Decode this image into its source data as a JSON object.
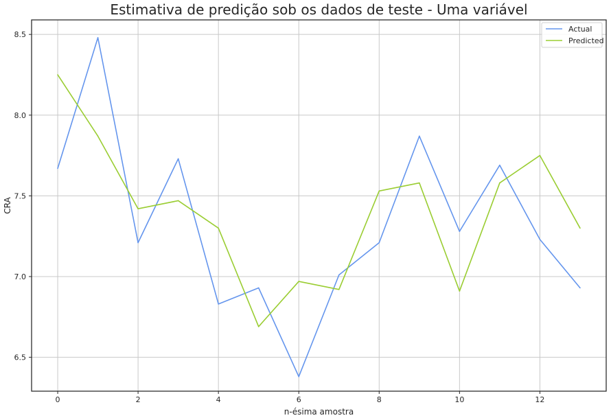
{
  "chart_data": {
    "type": "line",
    "title": "Estimativa de predição sob os dados de teste - Uma variável",
    "xlabel": "n-ésima amostra",
    "ylabel": "CRA",
    "x": [
      0,
      1,
      2,
      3,
      4,
      5,
      6,
      7,
      8,
      9,
      10,
      11,
      12,
      13
    ],
    "xlim": [
      -0.65,
      13.65
    ],
    "ylim": [
      6.29,
      8.59
    ],
    "xticks": [
      0,
      2,
      4,
      6,
      8,
      10,
      12
    ],
    "xtick_labels": [
      "0",
      "2",
      "4",
      "6",
      "8",
      "10",
      "12"
    ],
    "yticks": [
      6.5,
      7.0,
      7.5,
      8.0,
      8.5
    ],
    "ytick_labels": [
      "6.5",
      "7.0",
      "7.5",
      "8.0",
      "8.5"
    ],
    "grid": true,
    "legend_position": "top-right",
    "series": [
      {
        "name": "Actual",
        "color": "#6495ed",
        "values": [
          7.67,
          8.48,
          7.21,
          7.73,
          6.83,
          6.93,
          6.38,
          7.01,
          7.21,
          7.87,
          7.28,
          7.69,
          7.23,
          6.93
        ]
      },
      {
        "name": "Predicted",
        "color": "#9acd32",
        "values": [
          8.25,
          7.87,
          7.42,
          7.47,
          7.3,
          6.69,
          6.97,
          6.92,
          7.53,
          7.58,
          6.91,
          7.58,
          7.75,
          7.3
        ]
      }
    ]
  }
}
